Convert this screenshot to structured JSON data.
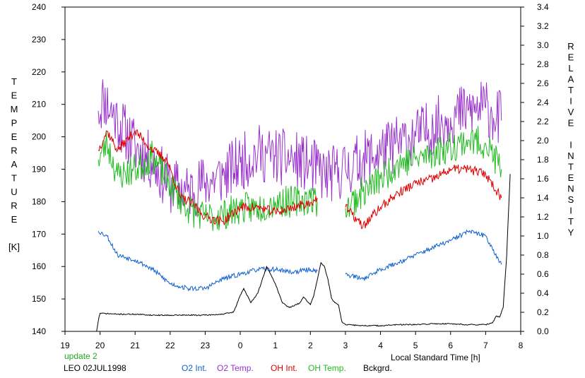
{
  "colors": {
    "o2_int": "#1060d0",
    "o2_temp": "#9933cc",
    "oh_int": "#dd0000",
    "oh_temp": "#22bb22",
    "bckgrd": "#000000",
    "update": "#22aa22"
  },
  "footer": {
    "update": "update 2",
    "site_date": "LEO 02JUL1998"
  },
  "chart_data": {
    "type": "line",
    "xlabel": "Local Standard Time [h]",
    "ylabel_left": [
      "T",
      "E",
      "M",
      "P",
      "E",
      "R",
      "A",
      "T",
      "U",
      "R",
      "E",
      "",
      "[K]"
    ],
    "ylabel_right": [
      "R",
      "E",
      "L",
      "A",
      "T",
      "I",
      "V",
      "E",
      "",
      "I",
      "N",
      "T",
      "E",
      "N",
      "S",
      "I",
      "T",
      "Y"
    ],
    "xlim": [
      19,
      32
    ],
    "x_ticks": [
      19,
      20,
      21,
      22,
      23,
      24,
      25,
      26,
      27,
      28,
      29,
      30,
      31,
      32
    ],
    "x_tick_labels": [
      "19",
      "20",
      "21",
      "22",
      "23",
      "0",
      "1",
      "2",
      "3",
      "4",
      "5",
      "6",
      "7",
      "8"
    ],
    "ylim_left": [
      140,
      240
    ],
    "y_ticks_left": [
      "140",
      "150",
      "160",
      "170",
      "180",
      "190",
      "200",
      "210",
      "220",
      "230",
      "240"
    ],
    "ylim_right": [
      0.0,
      3.4
    ],
    "y_ticks_right": [
      "0.0",
      "0.2",
      "0.4",
      "0.6",
      "0.8",
      "1.0",
      "1.2",
      "1.4",
      "1.6",
      "1.8",
      "2.0",
      "2.2",
      "2.4",
      "2.6",
      "2.8",
      "3.0",
      "3.2",
      "3.4"
    ],
    "legend": [
      "O2 Int.",
      "O2 Temp.",
      "OH Int.",
      "OH Temp.",
      "Bckgrd."
    ],
    "legend_placement": "bottom",
    "series": [
      {
        "name": "O2 Temp.",
        "axis": "left",
        "color_key": "o2_temp",
        "noise": 9,
        "seed": 11,
        "x": [
          19.95,
          20.1,
          20.5,
          21.0,
          21.5,
          22.0,
          22.5,
          23.0,
          23.5,
          24.0,
          24.5,
          25.0,
          25.5,
          26.0,
          26.5,
          27.0,
          27.5,
          28.0,
          28.5,
          29.0,
          29.5,
          30.0,
          30.5,
          31.0,
          31.45
        ],
        "y": [
          208,
          212,
          205,
          197,
          192,
          185,
          183,
          186,
          188,
          192,
          195,
          194,
          193,
          191,
          188,
          190,
          193,
          195,
          198,
          200,
          203,
          206,
          208,
          209,
          205
        ]
      },
      {
        "name": "OH Temp.",
        "axis": "left",
        "color_key": "oh_temp",
        "noise": 5,
        "seed": 23,
        "x": [
          19.95,
          20.2,
          20.5,
          21.0,
          21.5,
          22.0,
          22.5,
          23.0,
          23.5,
          24.0,
          24.5,
          25.0,
          25.5,
          26.0,
          26.2,
          26.85,
          27.0,
          27.5,
          28.0,
          28.5,
          29.0,
          29.5,
          30.0,
          30.5,
          31.0,
          31.45
        ],
        "y": [
          193,
          198,
          188,
          190,
          194,
          185,
          178,
          175,
          176,
          178,
          178,
          180,
          180,
          181,
          180,
          null,
          178,
          183,
          187,
          192,
          193,
          195,
          197,
          199,
          198,
          190
        ]
      },
      {
        "name": "OH Int.",
        "axis": "right",
        "color_key": "oh_int",
        "noise": 0.05,
        "seed": 37,
        "x": [
          19.95,
          20.2,
          20.5,
          21.0,
          21.5,
          21.9,
          22.3,
          22.6,
          23.0,
          23.5,
          24.0,
          24.5,
          25.0,
          25.5,
          26.0,
          26.2,
          26.85,
          27.0,
          27.5,
          28.0,
          28.5,
          29.0,
          29.5,
          30.0,
          30.5,
          31.0,
          31.45
        ],
        "y": [
          1.9,
          2.1,
          1.9,
          2.1,
          1.9,
          1.8,
          1.4,
          1.35,
          1.2,
          1.15,
          1.3,
          1.3,
          1.25,
          1.3,
          1.35,
          1.4,
          null,
          1.3,
          1.1,
          1.3,
          1.45,
          1.55,
          1.6,
          1.7,
          1.7,
          1.65,
          1.4
        ]
      },
      {
        "name": "O2 Int.",
        "axis": "right",
        "color_key": "o2_int",
        "noise": 0.025,
        "seed": 53,
        "x": [
          19.95,
          20.2,
          20.5,
          21.0,
          21.5,
          22.0,
          22.5,
          23.0,
          23.5,
          24.0,
          24.5,
          25.0,
          25.5,
          26.0,
          26.2,
          26.85,
          27.0,
          27.5,
          28.0,
          28.5,
          29.0,
          29.5,
          30.0,
          30.5,
          31.0,
          31.45
        ],
        "y": [
          1.05,
          1.0,
          0.8,
          0.75,
          0.65,
          0.5,
          0.45,
          0.45,
          0.55,
          0.6,
          0.65,
          0.65,
          0.62,
          0.65,
          0.63,
          null,
          0.6,
          0.55,
          0.65,
          0.72,
          0.8,
          0.88,
          0.95,
          1.05,
          1.0,
          0.7
        ]
      },
      {
        "name": "Bckgrd.",
        "axis": "right",
        "color_key": "bckgrd",
        "noise": 0.006,
        "seed": 71,
        "x": [
          19.9,
          19.97,
          20.0,
          20.5,
          21.0,
          21.5,
          22.0,
          22.5,
          23.0,
          23.5,
          23.8,
          23.9,
          24.0,
          24.1,
          24.3,
          24.5,
          24.75,
          25.0,
          25.2,
          25.4,
          25.6,
          25.7,
          25.8,
          26.0,
          26.1,
          26.3,
          26.4,
          26.5,
          26.6,
          26.7,
          26.8,
          26.9,
          27.0,
          27.5,
          28.0,
          28.5,
          29.0,
          29.5,
          30.0,
          30.5,
          31.0,
          31.2,
          31.3,
          31.4,
          31.5,
          31.6,
          31.7
        ],
        "y": [
          0.0,
          0.15,
          0.19,
          0.18,
          0.18,
          0.17,
          0.17,
          0.17,
          0.17,
          0.18,
          0.2,
          0.28,
          0.38,
          0.45,
          0.3,
          0.4,
          0.68,
          0.5,
          0.3,
          0.25,
          0.28,
          0.3,
          0.36,
          0.28,
          0.38,
          0.72,
          0.68,
          0.55,
          0.35,
          0.3,
          0.28,
          0.1,
          0.07,
          0.06,
          0.06,
          0.07,
          0.07,
          0.08,
          0.08,
          0.07,
          0.07,
          0.09,
          0.16,
          0.15,
          0.25,
          0.8,
          1.65
        ]
      }
    ]
  }
}
